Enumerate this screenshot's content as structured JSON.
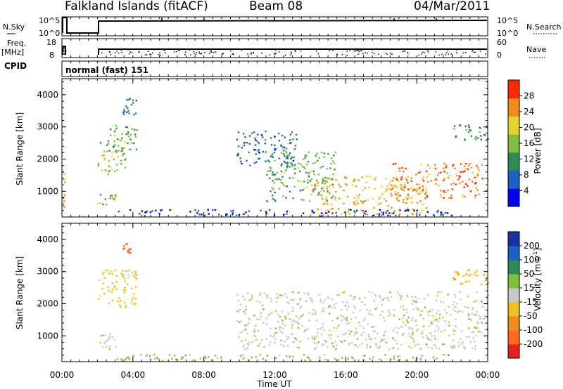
{
  "header": {
    "station": "Falkland Islands (fitACF)",
    "beam": "Beam 08",
    "date": "04/Mar/2011"
  },
  "panels": {
    "nsky": {
      "left_label": "N.Sky",
      "right_label": "N.Search",
      "left_ticks": [
        "10^5",
        "10^0"
      ],
      "right_ticks": [
        "10^5",
        "10^0"
      ]
    },
    "freq": {
      "left_label_1": "Freq.",
      "left_label_2": "[MHz]",
      "right_label": "Nave",
      "left_ticks": [
        "18",
        "8"
      ],
      "right_ticks": [
        "60",
        "0"
      ]
    },
    "cpid": {
      "label": "CPID",
      "mode": "normal (fast) 151"
    }
  },
  "chart_data": [
    {
      "type": "heatmap",
      "name": "power",
      "ylabel": "Slant Range [km]",
      "ylim": [
        200,
        4500
      ],
      "yticks": [
        "1000",
        "2000",
        "3000",
        "4000"
      ],
      "x_range_hours": [
        0,
        24
      ],
      "colorbar": {
        "label": "Power [dB]",
        "ticks": [
          "4",
          "8",
          "12",
          "16",
          "20",
          "24",
          "28"
        ],
        "range": [
          0,
          32
        ],
        "colors": [
          "#0000f0",
          "#1f5fc8",
          "#2e8b57",
          "#7fbf3f",
          "#e6d22e",
          "#f08c1e",
          "#ff2a00"
        ]
      },
      "regions": [
        {
          "t0": 0.0,
          "t1": 0.12,
          "r0": 250,
          "r1": 1800,
          "power": 24
        },
        {
          "t0": 2.0,
          "t1": 3.6,
          "r0": 1550,
          "r1": 2600,
          "power": 16
        },
        {
          "t0": 2.5,
          "t1": 4.2,
          "r0": 2300,
          "r1": 3100,
          "power": 14
        },
        {
          "t0": 2.0,
          "t1": 3.0,
          "r0": 600,
          "r1": 1000,
          "power": 14
        },
        {
          "t0": 3.4,
          "t1": 4.2,
          "r0": 3400,
          "r1": 3950,
          "power": 10
        },
        {
          "t0": 9.8,
          "t1": 13.2,
          "r0": 1800,
          "r1": 2900,
          "power": 8
        },
        {
          "t0": 11.5,
          "t1": 15.5,
          "r0": 700,
          "r1": 2300,
          "power": 14
        },
        {
          "t0": 14.0,
          "t1": 20.5,
          "r0": 300,
          "r1": 1500,
          "power": 22
        },
        {
          "t0": 18.5,
          "t1": 24.0,
          "r0": 800,
          "r1": 1900,
          "power": 26
        },
        {
          "t0": 22.0,
          "t1": 24.0,
          "r0": 2600,
          "r1": 3100,
          "power": 12
        },
        {
          "t0": 3.0,
          "t1": 22.0,
          "r0": 250,
          "r1": 450,
          "power": 4
        }
      ]
    },
    {
      "type": "heatmap",
      "name": "velocity",
      "ylabel": "Slant Range [km]",
      "ylim": [
        200,
        4500
      ],
      "yticks": [
        "1000",
        "2000",
        "3000",
        "4000"
      ],
      "xlabel": "Time UT",
      "xticks": [
        "00:00",
        "04:00",
        "08:00",
        "12:00",
        "16:00",
        "20:00",
        "00:00"
      ],
      "x_range_hours": [
        0,
        24
      ],
      "colorbar": {
        "label": "Velocity [m s",
        "label_sup": "-1",
        "label_end": "]",
        "ticks": [
          "200",
          "100",
          "50",
          "15",
          "-15",
          "-50",
          "-100",
          "-200"
        ],
        "colors": [
          "#1a2fa8",
          "#1f5fc8",
          "#2e8b57",
          "#7fbf3f",
          "#c8c8c8",
          "#f0c020",
          "#f08c1e",
          "#ff6a1e",
          "#e62020"
        ]
      },
      "regions": [
        {
          "t0": 2.0,
          "t1": 4.2,
          "r0": 1900,
          "r1": 3100,
          "velocity": -30
        },
        {
          "t0": 2.0,
          "t1": 3.0,
          "r0": 600,
          "r1": 1100,
          "velocity": 0
        },
        {
          "t0": 3.4,
          "t1": 4.0,
          "r0": 3600,
          "r1": 3900,
          "velocity": -150
        },
        {
          "t0": 9.8,
          "t1": 24.0,
          "r0": 600,
          "r1": 2400,
          "velocity": 0
        },
        {
          "t0": 22.0,
          "t1": 24.0,
          "r0": 2600,
          "r1": 3100,
          "velocity": -40
        },
        {
          "t0": 3.0,
          "t1": 22.0,
          "r0": 250,
          "r1": 450,
          "velocity": 30
        }
      ]
    }
  ]
}
